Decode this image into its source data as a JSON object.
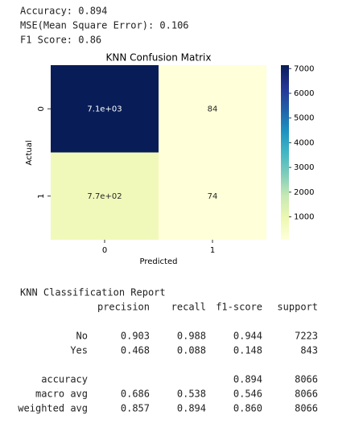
{
  "lines": [
    "Accuracy: 0.894",
    "MSE(Mean Square Error):  0.106",
    "F1 Score:  0.86"
  ],
  "chart_data": {
    "type": "heatmap",
    "title": "KNN Confusion Matrix",
    "x_label": "Predicted",
    "y_label": "Actual",
    "categories": [
      "0",
      "1"
    ],
    "row_categories": [
      "0",
      "1"
    ],
    "values": [
      [
        7139,
        84
      ],
      [
        769,
        74
      ]
    ],
    "value_labels": [
      [
        "7.1e+03",
        "84"
      ],
      [
        "7.7e+02",
        "74"
      ]
    ],
    "colormap": [
      "#ffffd9",
      "#edf8b1",
      "#c7e9b4",
      "#7fcdbb",
      "#41b6c4",
      "#1d91c0",
      "#225ea8",
      "#253494",
      "#081d58"
    ],
    "clim": [
      74,
      7139
    ],
    "cticks": [
      1000,
      2000,
      3000,
      4000,
      5000,
      6000,
      7000
    ]
  },
  "report": {
    "title": "KNN Classification Report",
    "columns": [
      "precision",
      "recall",
      "f1-score",
      "support"
    ],
    "rows": [
      {
        "label": "No",
        "values": [
          "0.903",
          "0.988",
          "0.944",
          "7223"
        ]
      },
      {
        "label": "Yes",
        "values": [
          "0.468",
          "0.088",
          "0.148",
          "843"
        ]
      }
    ],
    "accuracy": {
      "label": "accuracy",
      "f1": "0.894",
      "support": "8066"
    },
    "averages": [
      {
        "label": "macro avg",
        "values": [
          "0.686",
          "0.538",
          "0.546",
          "8066"
        ]
      },
      {
        "label": "weighted avg",
        "values": [
          "0.857",
          "0.894",
          "0.860",
          "8066"
        ]
      }
    ]
  }
}
